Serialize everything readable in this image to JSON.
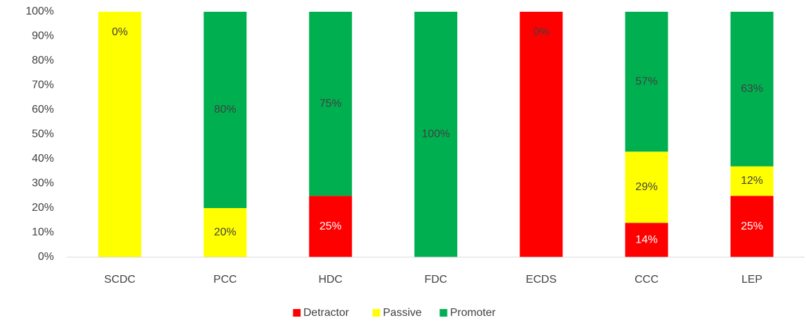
{
  "chart_data": {
    "type": "stacked_bar_100",
    "categories": [
      "SCDC",
      "PCC",
      "HDC",
      "FDC",
      "ECDS",
      "CCC",
      "LEP"
    ],
    "series": [
      {
        "name": "Detractor",
        "color": "#ff0000",
        "label_color": "#ffffff",
        "values": [
          0,
          0,
          25,
          0,
          100,
          14,
          25
        ],
        "value_labels": [
          "0%",
          "0%",
          "25%",
          null,
          null,
          "14%",
          "25%"
        ]
      },
      {
        "name": "Passive",
        "color": "#ffff00",
        "label_color": "#404040",
        "values": [
          100,
          20,
          0,
          0,
          0,
          29,
          12
        ],
        "value_labels": [
          null,
          "20%",
          null,
          null,
          null,
          "29%",
          "12%"
        ]
      },
      {
        "name": "Promoter",
        "color": "#00b050",
        "label_color": "#404040",
        "values": [
          0,
          80,
          75,
          100,
          0,
          57,
          63
        ],
        "value_labels": [
          "0%",
          "80%",
          "75%",
          "100%",
          "0%",
          "57%",
          "63%"
        ]
      }
    ],
    "ylim": [
      0,
      100
    ],
    "yticks": [
      {
        "value": 0,
        "label": "0%"
      },
      {
        "value": 10,
        "label": "10%"
      },
      {
        "value": 20,
        "label": "20%"
      },
      {
        "value": 30,
        "label": "30%"
      },
      {
        "value": 40,
        "label": "40%"
      },
      {
        "value": 50,
        "label": "50%"
      },
      {
        "value": 60,
        "label": "60%"
      },
      {
        "value": 70,
        "label": "70%"
      },
      {
        "value": 80,
        "label": "80%"
      },
      {
        "value": 90,
        "label": "90%"
      },
      {
        "value": 100,
        "label": "100%"
      }
    ],
    "legend": "bottom"
  }
}
